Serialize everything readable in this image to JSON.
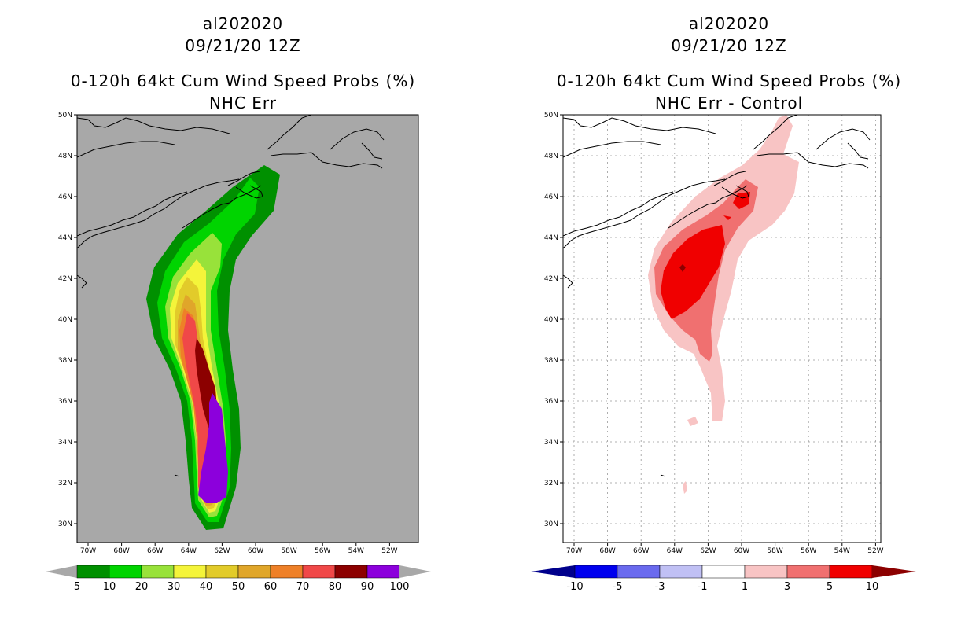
{
  "left": {
    "storm_id": "al202020",
    "datetime": "09/21/20 12Z",
    "product": "0-120h 64kt Cum Wind Speed Probs (%)",
    "subtitle": "NHC Err",
    "colorbar_labels": [
      "5",
      "10",
      "20",
      "30",
      "40",
      "50",
      "60",
      "70",
      "80",
      "90",
      "100"
    ],
    "colorbar_colors": [
      "#009000",
      "#00d400",
      "#98e23a",
      "#f4f43a",
      "#e2cb2a",
      "#e0a62a",
      "#ee8028",
      "#f04848",
      "#8c0000",
      "#8c00dc"
    ],
    "background": "#a8a8a8"
  },
  "right": {
    "storm_id": "al202020",
    "datetime": "09/21/20 12Z",
    "product": "0-120h 64kt Cum Wind Speed Probs (%)",
    "subtitle": "NHC Err - Control",
    "colorbar_labels": [
      "-10",
      "-5",
      "-3",
      "-1",
      "1",
      "3",
      "5",
      "10"
    ],
    "colorbar_colors": [
      "#0000ee",
      "#6a6aee",
      "#c0c0f4",
      "#ffffff",
      "#f8c4c4",
      "#f07070",
      "#f00000"
    ],
    "arrow_left_color": "#00008c",
    "arrow_right_color": "#8c0000",
    "background": "#ffffff"
  },
  "axes": {
    "lat_labels": [
      "50N",
      "48N",
      "46N",
      "44N",
      "42N",
      "40N",
      "38N",
      "36N",
      "34N",
      "32N",
      "30N"
    ],
    "lon_labels": [
      "70W",
      "68W",
      "66W",
      "64W",
      "62W",
      "60W",
      "58W",
      "56W",
      "54W",
      "52W"
    ]
  }
}
